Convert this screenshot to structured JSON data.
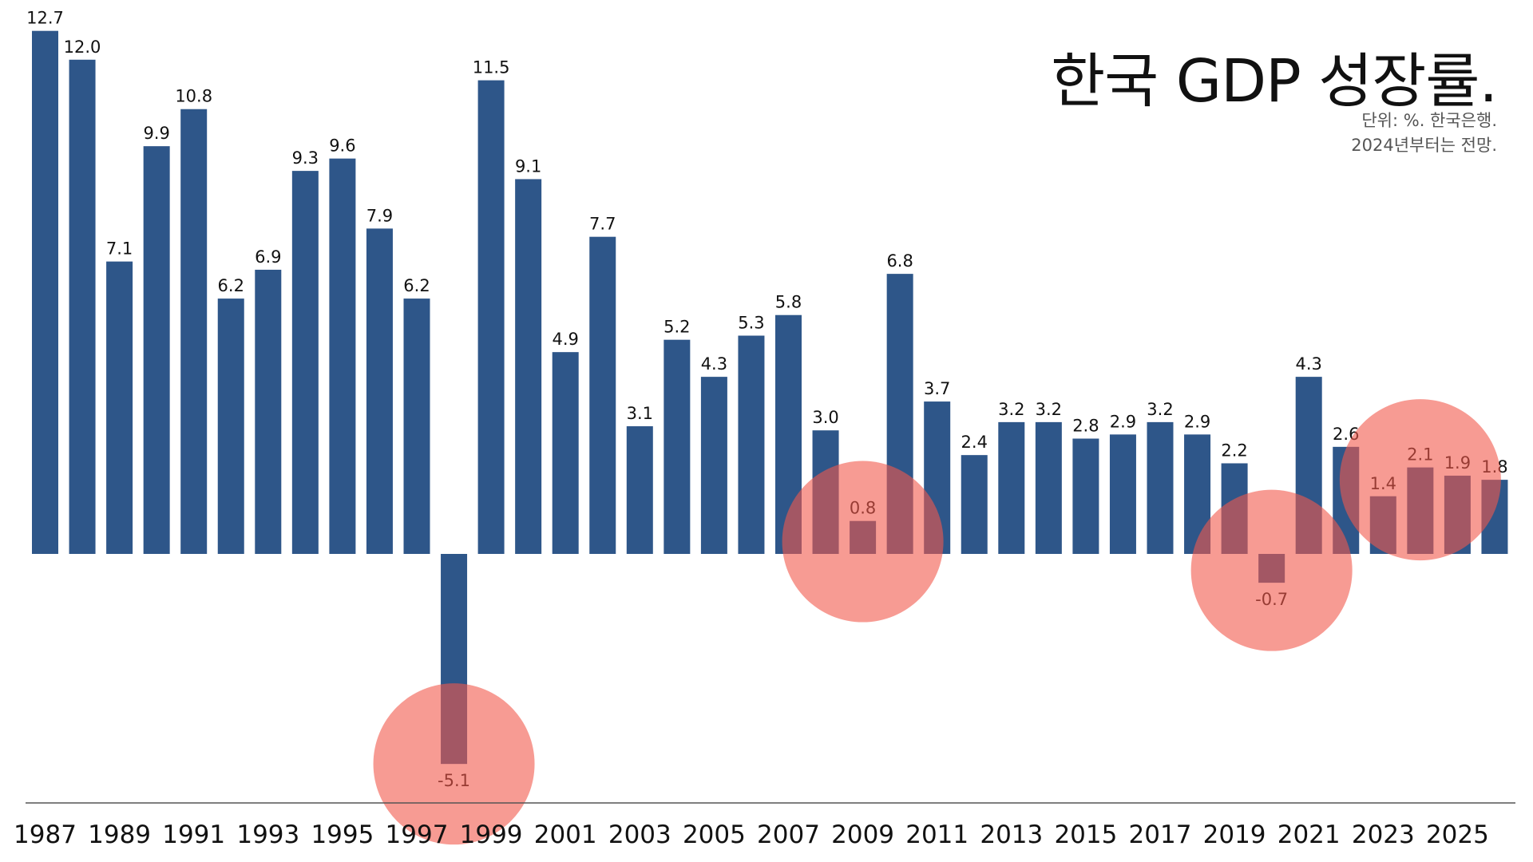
{
  "title": "한국 GDP 성장률.",
  "subtitle_lines": [
    "단위: %. 한국은행.",
    "2024년부터는 전망."
  ],
  "colors": {
    "bar": "#2e5689",
    "highlight": "#f2594b",
    "axis": "#555555",
    "label": "#111111"
  },
  "chart_data": {
    "type": "bar",
    "title": "한국 GDP 성장률.",
    "xlabel": "",
    "ylabel": "",
    "unit": "%",
    "source": "한국은행",
    "note": "2024년부터는 전망.",
    "categories": [
      1987,
      1988,
      1989,
      1990,
      1991,
      1992,
      1993,
      1994,
      1995,
      1996,
      1997,
      1998,
      1999,
      2000,
      2001,
      2002,
      2003,
      2004,
      2005,
      2006,
      2007,
      2008,
      2009,
      2010,
      2011,
      2012,
      2013,
      2014,
      2015,
      2016,
      2017,
      2018,
      2019,
      2020,
      2021,
      2022,
      2023,
      2024,
      2025,
      2026
    ],
    "values": [
      12.7,
      12.0,
      7.1,
      9.9,
      10.8,
      6.2,
      6.9,
      9.3,
      9.6,
      7.9,
      6.2,
      -5.1,
      11.5,
      9.1,
      4.9,
      7.7,
      3.1,
      5.2,
      4.3,
      5.3,
      5.8,
      3.0,
      0.8,
      6.8,
      3.7,
      2.4,
      3.2,
      3.2,
      2.8,
      2.9,
      3.2,
      2.9,
      2.2,
      -0.7,
      4.3,
      2.6,
      1.4,
      2.1,
      1.9,
      1.8
    ],
    "value_labels": [
      "12.7",
      "12.0",
      "7.1",
      "9.9",
      "10.8",
      "6.2",
      "6.9",
      "9.3",
      "9.6",
      "7.9",
      "6.2",
      "-5.1",
      "11.5",
      "9.1",
      "4.9",
      "7.7",
      "3.1",
      "5.2",
      "4.3",
      "5.3",
      "5.8",
      "3.0",
      "0.8",
      "6.8",
      "3.7",
      "2.4",
      "3.2",
      "3.2",
      "2.8",
      "2.9",
      "3.2",
      "2.9",
      "2.2",
      "-0.7",
      "4.3",
      "2.6",
      "1.4",
      "2.1",
      "1.9",
      "1.8"
    ],
    "x_tick_labels": [
      "1987",
      "1989",
      "1991",
      "1993",
      "1995",
      "1997",
      "1999",
      "2001",
      "2003",
      "2005",
      "2007",
      "2009",
      "2011",
      "2013",
      "2015",
      "2017",
      "2019",
      "2021",
      "2023",
      "2025"
    ],
    "ylim": [
      -6,
      13
    ],
    "grid": false,
    "legend": "none",
    "highlights": [
      {
        "center_category": 1998,
        "center_value": -5.1
      },
      {
        "center_category": 2009,
        "center_value": 0.3
      },
      {
        "center_category": 2020,
        "center_value": -0.4
      },
      {
        "center_category": 2024,
        "center_value": 1.8
      }
    ]
  }
}
